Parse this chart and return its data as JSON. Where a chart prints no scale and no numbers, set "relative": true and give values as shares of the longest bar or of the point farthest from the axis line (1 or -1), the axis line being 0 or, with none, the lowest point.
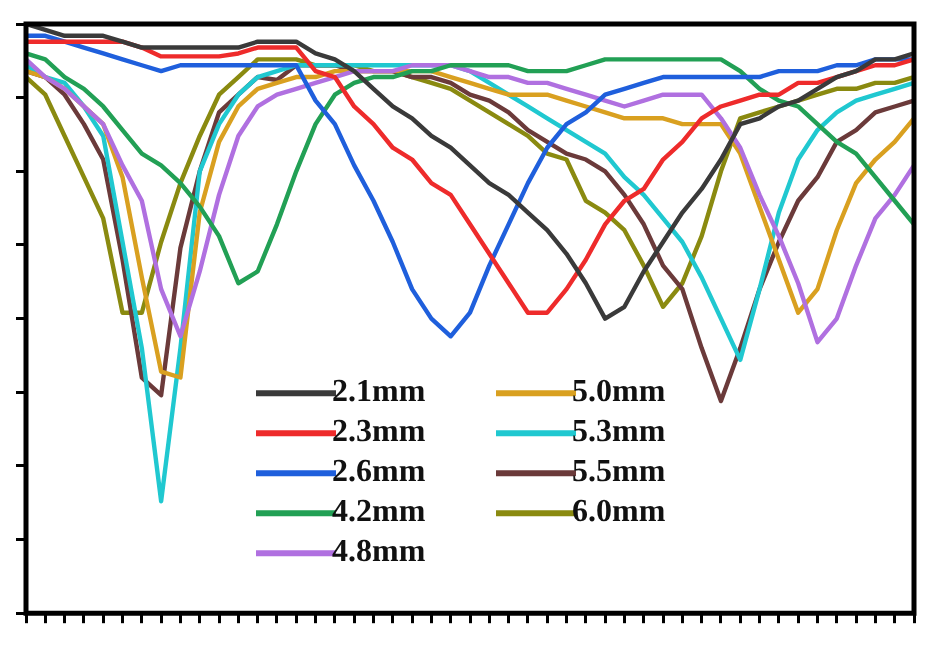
{
  "chart_data": {
    "type": "line",
    "relative": true,
    "legend": "bottom left",
    "marker": "none",
    "line_style": "solid",
    "grid": false,
    "categories": [
      null,
      null,
      null,
      null,
      null,
      null,
      null,
      null,
      null,
      null,
      null,
      null,
      null,
      null,
      null,
      null,
      null,
      null,
      null,
      null,
      null,
      null,
      null,
      null,
      null,
      null,
      null,
      null,
      null,
      null,
      null,
      null,
      null,
      null,
      null,
      null,
      null,
      null,
      null,
      null,
      null,
      null,
      null,
      null,
      null,
      null,
      null
    ],
    "series": [
      {
        "name": "2.1mm",
        "color": "#3a3a3a",
        "values": [
          1,
          0.99,
          0.98,
          0.98,
          0.98,
          0.97,
          0.96,
          0.96,
          0.96,
          0.96,
          0.96,
          0.96,
          0.97,
          0.97,
          0.97,
          0.95,
          0.94,
          0.92,
          0.89,
          0.86,
          0.84,
          0.81,
          0.79,
          0.76,
          0.73,
          0.71,
          0.68,
          0.65,
          0.61,
          0.56,
          0.5,
          0.52,
          0.58,
          0.63,
          0.68,
          0.72,
          0.77,
          0.83,
          0.84,
          0.86,
          0.87,
          0.89,
          0.91,
          0.92,
          0.94,
          0.94,
          0.95
        ]
      },
      {
        "name": "2.3mm",
        "color": "#ee2b2b",
        "values": [
          0.97,
          0.97,
          0.97,
          0.97,
          0.97,
          0.97,
          0.96,
          0.945,
          0.945,
          0.945,
          0.945,
          0.95,
          0.96,
          0.96,
          0.96,
          0.92,
          0.91,
          0.86,
          0.83,
          0.79,
          0.77,
          0.73,
          0.71,
          0.66,
          0.61,
          0.56,
          0.51,
          0.51,
          0.55,
          0.6,
          0.66,
          0.7,
          0.72,
          0.77,
          0.8,
          0.84,
          0.86,
          0.87,
          0.88,
          0.88,
          0.9,
          0.9,
          0.91,
          0.92,
          0.93,
          0.93,
          0.94
        ]
      },
      {
        "name": "2.6mm",
        "color": "#1f5fdc",
        "values": [
          0.98,
          0.98,
          0.97,
          0.96,
          0.95,
          0.94,
          0.93,
          0.92,
          0.93,
          0.93,
          0.93,
          0.93,
          0.93,
          0.93,
          0.93,
          0.87,
          0.83,
          0.76,
          0.7,
          0.63,
          0.55,
          0.5,
          0.47,
          0.51,
          0.59,
          0.66,
          0.73,
          0.79,
          0.83,
          0.85,
          0.88,
          0.89,
          0.9,
          0.91,
          0.91,
          0.91,
          0.91,
          0.91,
          0.91,
          0.92,
          0.92,
          0.92,
          0.93,
          0.93,
          0.94,
          0.94,
          0.94
        ]
      },
      {
        "name": "4.2mm",
        "color": "#22a055",
        "values": [
          0.95,
          0.94,
          0.91,
          0.89,
          0.86,
          0.82,
          0.78,
          0.76,
          0.73,
          0.69,
          0.64,
          0.56,
          0.58,
          0.66,
          0.75,
          0.83,
          0.88,
          0.9,
          0.91,
          0.91,
          0.92,
          0.92,
          0.93,
          0.93,
          0.93,
          0.93,
          0.92,
          0.92,
          0.92,
          0.93,
          0.94,
          0.94,
          0.94,
          0.94,
          0.94,
          0.94,
          0.94,
          0.92,
          0.89,
          0.87,
          0.86,
          0.83,
          0.8,
          0.78,
          0.74,
          0.7,
          0.66
        ]
      },
      {
        "name": "4.8mm",
        "color": "#b070e0",
        "values": [
          0.94,
          0.91,
          0.89,
          0.86,
          0.83,
          0.76,
          0.7,
          0.55,
          0.47,
          0.58,
          0.71,
          0.81,
          0.86,
          0.88,
          0.89,
          0.9,
          0.91,
          0.92,
          0.92,
          0.92,
          0.93,
          0.93,
          0.93,
          0.92,
          0.91,
          0.91,
          0.9,
          0.9,
          0.89,
          0.88,
          0.87,
          0.86,
          0.87,
          0.88,
          0.88,
          0.88,
          0.84,
          0.79,
          0.71,
          0.64,
          0.56,
          0.46,
          0.5,
          0.59,
          0.67,
          0.71,
          0.76
        ]
      },
      {
        "name": "5.0mm",
        "color": "#d9a020",
        "values": [
          0.92,
          0.91,
          0.89,
          0.86,
          0.83,
          0.74,
          0.57,
          0.41,
          0.4,
          0.68,
          0.8,
          0.86,
          0.89,
          0.9,
          0.91,
          0.91,
          0.92,
          0.92,
          0.92,
          0.92,
          0.92,
          0.92,
          0.91,
          0.9,
          0.89,
          0.88,
          0.88,
          0.88,
          0.87,
          0.86,
          0.85,
          0.84,
          0.84,
          0.84,
          0.83,
          0.83,
          0.83,
          0.78,
          0.69,
          0.6,
          0.51,
          0.55,
          0.65,
          0.73,
          0.77,
          0.8,
          0.84
        ]
      },
      {
        "name": "5.3mm",
        "color": "#20c8d0",
        "values": [
          0.93,
          0.91,
          0.9,
          0.86,
          0.81,
          0.63,
          0.45,
          0.19,
          0.45,
          0.75,
          0.83,
          0.88,
          0.91,
          0.92,
          0.93,
          0.93,
          0.93,
          0.93,
          0.93,
          0.93,
          0.93,
          0.93,
          0.93,
          0.92,
          0.9,
          0.88,
          0.86,
          0.84,
          0.82,
          0.8,
          0.78,
          0.74,
          0.71,
          0.67,
          0.63,
          0.57,
          0.5,
          0.43,
          0.55,
          0.68,
          0.77,
          0.82,
          0.85,
          0.87,
          0.88,
          0.89,
          0.9
        ]
      },
      {
        "name": "5.5mm",
        "color": "#6b3a3a",
        "values": [
          0.92,
          0.91,
          0.88,
          0.83,
          0.77,
          0.6,
          0.4,
          0.37,
          0.62,
          0.75,
          0.85,
          0.88,
          0.91,
          0.905,
          0.93,
          0.93,
          0.93,
          0.92,
          0.92,
          0.92,
          0.91,
          0.91,
          0.9,
          0.88,
          0.87,
          0.85,
          0.82,
          0.8,
          0.78,
          0.77,
          0.75,
          0.71,
          0.66,
          0.59,
          0.55,
          0.45,
          0.36,
          0.45,
          0.55,
          0.63,
          0.7,
          0.74,
          0.8,
          0.82,
          0.85,
          0.86,
          0.87
        ]
      },
      {
        "name": "6.0mm",
        "color": "#8a8a10",
        "values": [
          0.91,
          0.88,
          0.81,
          0.74,
          0.67,
          0.51,
          0.51,
          0.63,
          0.73,
          0.81,
          0.88,
          0.91,
          0.94,
          0.94,
          0.94,
          0.93,
          0.93,
          0.93,
          0.92,
          0.92,
          0.91,
          0.9,
          0.89,
          0.87,
          0.85,
          0.83,
          0.81,
          0.78,
          0.77,
          0.7,
          0.68,
          0.65,
          0.59,
          0.52,
          0.56,
          0.64,
          0.75,
          0.84,
          0.85,
          0.86,
          0.87,
          0.88,
          0.89,
          0.89,
          0.9,
          0.9,
          0.91
        ]
      }
    ]
  }
}
